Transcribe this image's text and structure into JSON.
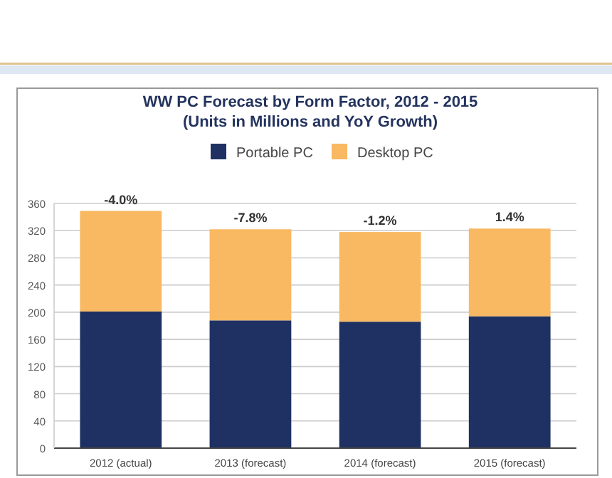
{
  "chart_data": {
    "type": "bar",
    "title": "WW PC Forecast by Form Factor, 2012 - 2015",
    "subtitle": "(Units in Millions and YoY Growth)",
    "categories": [
      "2012 (actual)",
      "2013 (forecast)",
      "2014 (forecast)",
      "2015 (forecast)"
    ],
    "series": [
      {
        "name": "Portable PC",
        "color": "#1f3162",
        "values": [
          201,
          188,
          186,
          194
        ]
      },
      {
        "name": "Desktop PC",
        "color": "#f9b862",
        "values": [
          148,
          134,
          132,
          129
        ]
      }
    ],
    "stacked": true,
    "ylim": [
      0,
      360
    ],
    "yticks": [
      0,
      40,
      80,
      120,
      160,
      200,
      240,
      280,
      320,
      360
    ],
    "grid": "y",
    "legend": "top",
    "annotations": [
      {
        "text": "-4.0%",
        "x": "2012 (actual)",
        "y": 349
      },
      {
        "text": "-7.8%",
        "x": "2013 (forecast)",
        "y": 322
      },
      {
        "text": "-1.2%",
        "x": "2014 (forecast)",
        "y": 318
      },
      {
        "text": "1.4%",
        "x": "2015 (forecast)",
        "y": 323
      }
    ]
  }
}
